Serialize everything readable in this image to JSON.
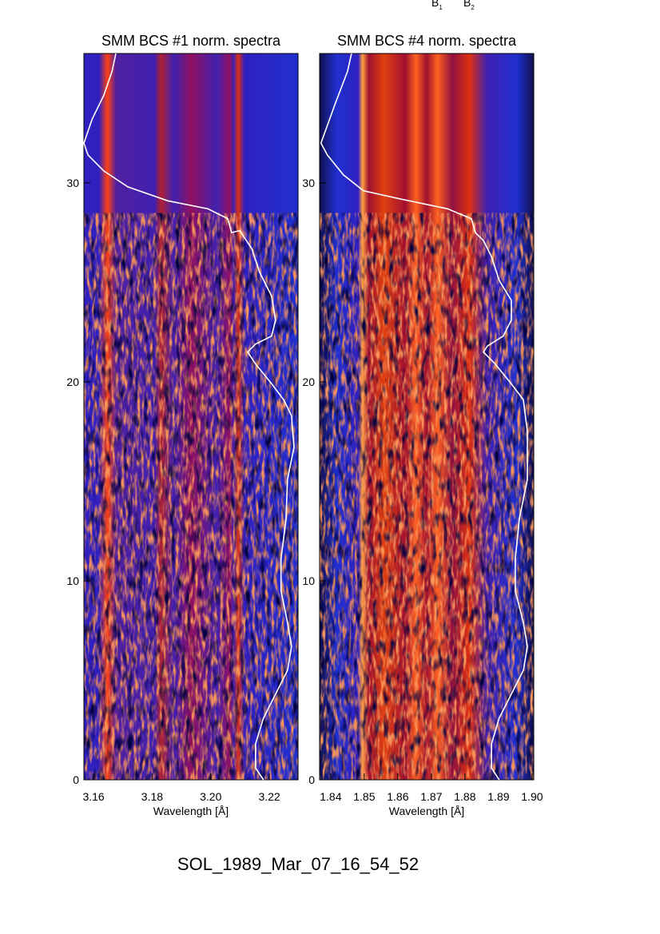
{
  "chart_data": [
    {
      "type": "line",
      "title": "SMM BCS #1 norm. spectra",
      "xlabel": "Wavelength [Å]",
      "xlim": [
        3.1567,
        3.2298
      ],
      "xticks": [
        3.16,
        3.18,
        {
          "value": 3.2,
          "label": "3.20"
        },
        3.22
      ],
      "ylim": [
        0,
        36.5
      ],
      "yticks": [
        0,
        10,
        20,
        30
      ],
      "series": [
        {
          "color": "#ffffff",
          "x": [
            3.1676,
            3.1663,
            3.1635,
            3.1595,
            3.1567,
            3.1581,
            3.1635,
            3.1717,
            3.1853,
            3.199,
            3.2058,
            3.2071,
            3.2099,
            3.214,
            3.2167,
            3.2208,
            3.2221,
            3.2208,
            3.2153,
            3.2126,
            3.2153,
            3.2208,
            3.2249,
            3.2276,
            3.2284,
            3.2262,
            3.2257,
            3.224,
            3.224,
            3.2262,
            3.2276,
            3.2262,
            3.2221,
            3.218,
            3.2153,
            3.2153,
            3.218
          ],
          "values": [
            36.5,
            35.6,
            34.4,
            33.2,
            32.0,
            31.4,
            30.6,
            29.8,
            29.1,
            28.7,
            28.2,
            27.5,
            27.6,
            26.7,
            25.5,
            24.3,
            23.1,
            22.3,
            21.9,
            21.5,
            20.9,
            19.9,
            19.1,
            18.3,
            16.7,
            15.1,
            13.1,
            11.1,
            9.5,
            7.9,
            6.7,
            5.5,
            4.3,
            3.1,
            1.8,
            0.6,
            0
          ]
        }
      ]
    },
    {
      "type": "line",
      "title": "SMM BCS #4 norm. spectra",
      "xlabel": "Wavelength [Å]",
      "xlim": [
        1.8367,
        1.9005
      ],
      "xticks": [
        1.84,
        1.85,
        1.86,
        1.87,
        1.88,
        1.89,
        {
          "value": 1.9,
          "label": "1.90"
        }
      ],
      "ylim": [
        0,
        36.5
      ],
      "yticks": [
        0,
        10,
        20,
        30
      ],
      "series": [
        {
          "color": "#ffffff",
          "x": [
            1.8462,
            1.845,
            1.8414,
            1.8371,
            1.839,
            1.8438,
            1.8498,
            1.8605,
            1.8748,
            1.8819,
            1.8831,
            1.8855,
            1.8879,
            1.8902,
            1.8938,
            1.8938,
            1.8914,
            1.8867,
            1.8855,
            1.889,
            1.8938,
            1.8974,
            1.8986,
            1.8986,
            1.8962,
            1.895,
            1.895,
            1.8974,
            1.8986,
            1.8974,
            1.8938,
            1.8902,
            1.8879,
            1.8879,
            1.8902
          ],
          "values": [
            36.5,
            35.6,
            34.0,
            32.0,
            31.4,
            30.4,
            29.6,
            29.2,
            28.7,
            28.2,
            27.5,
            27.1,
            26.3,
            25.1,
            24.1,
            23.1,
            22.3,
            21.8,
            21.5,
            20.9,
            19.9,
            19.1,
            17.5,
            15.1,
            13.1,
            11.1,
            9.5,
            7.9,
            6.7,
            5.5,
            4.3,
            3.1,
            1.8,
            0.6,
            0
          ]
        }
      ]
    }
  ],
  "annotations": [
    {
      "text": "B",
      "sub": "1"
    },
    {
      "text": "B",
      "sub": "2"
    }
  ],
  "caption": "SOL_1989_Mar_07_16_54_52"
}
